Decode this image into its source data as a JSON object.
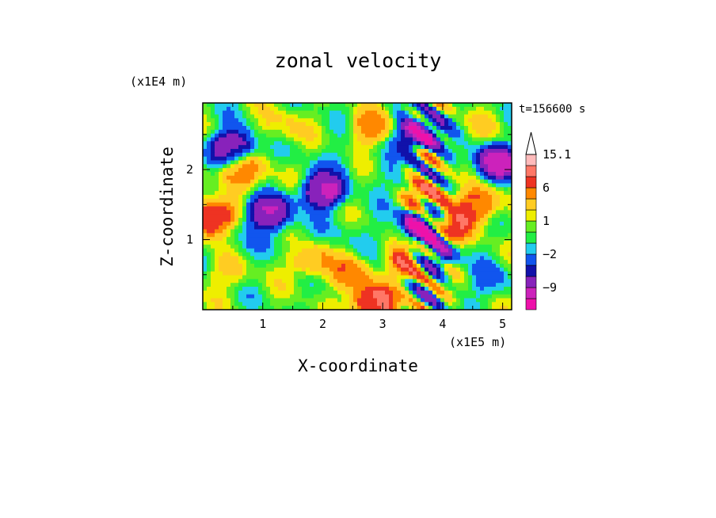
{
  "chart_data": {
    "type": "heatmap",
    "title": "zonal velocity",
    "xlabel": "X-coordinate",
    "ylabel": "Z-coordinate",
    "x_scale_label": "(x1E5 m)",
    "y_scale_label": "(x1E4 m)",
    "time_label": "t=156600 s",
    "xlim": [
      0,
      5.15
    ],
    "ylim": [
      0,
      2.95
    ],
    "x_ticks": [
      1,
      2,
      3,
      4,
      5
    ],
    "y_ticks": [
      1,
      2
    ],
    "colorbar": {
      "levels": [
        -15,
        -12,
        -9,
        -6,
        -4,
        -2,
        -1,
        0,
        1,
        2,
        4,
        6,
        9,
        12,
        15.1
      ],
      "labels": [
        "15.1",
        "6",
        "1",
        "−2",
        "−9"
      ],
      "label_values": [
        15.1,
        6,
        1,
        -2,
        -9
      ],
      "colors": [
        "#ee11aa",
        "#cc22bb",
        "#8822bb",
        "#1111aa",
        "#1155ee",
        "#22ccee",
        "#22ee44",
        "#66ee22",
        "#eeee00",
        "#ffcc22",
        "#ff8800",
        "#ee3322",
        "#ff7766",
        "#ffbbbb"
      ]
    },
    "blobs": [
      {
        "x": 1.1,
        "z": 1.4,
        "v": -9
      },
      {
        "x": 0.5,
        "z": 2.3,
        "v": -9
      },
      {
        "x": 2.0,
        "z": 1.7,
        "v": -9
      },
      {
        "x": 3.7,
        "z": 1.2,
        "v": -12
      },
      {
        "x": 3.8,
        "z": 0.8,
        "v": -9
      },
      {
        "x": 3.6,
        "z": 2.5,
        "v": -9
      },
      {
        "x": 4.9,
        "z": 2.1,
        "v": -9
      },
      {
        "x": 0.15,
        "z": 1.3,
        "v": 9
      },
      {
        "x": 4.1,
        "z": 1.2,
        "v": 9
      },
      {
        "x": 3.5,
        "z": 0.7,
        "v": 9
      },
      {
        "x": 2.85,
        "z": 0.1,
        "v": 9
      },
      {
        "x": 3.75,
        "z": 1.6,
        "v": 6
      },
      {
        "x": 4.6,
        "z": 1.5,
        "v": 6
      },
      {
        "x": 0.6,
        "z": 2.0,
        "v": 6
      },
      {
        "x": 1.8,
        "z": 0.7,
        "v": 4
      },
      {
        "x": 2.5,
        "z": 0.5,
        "v": 4
      },
      {
        "x": 1.3,
        "z": 2.6,
        "v": 2
      },
      {
        "x": 2.8,
        "z": 2.6,
        "v": 4
      },
      {
        "x": 0.4,
        "z": 0.5,
        "v": 2
      },
      {
        "x": 0.3,
        "z": 0.1,
        "v": 0
      },
      {
        "x": 0.6,
        "z": 1.0,
        "v": -1
      },
      {
        "x": 1.5,
        "z": 1.0,
        "v": -1
      },
      {
        "x": 4.8,
        "z": 0.4,
        "v": -2
      },
      {
        "x": 2.2,
        "z": 2.1,
        "v": -1
      },
      {
        "x": 1.2,
        "z": 1.8,
        "v": 1
      },
      {
        "x": 2.5,
        "z": 1.1,
        "v": -1
      },
      {
        "x": 4.6,
        "z": 2.6,
        "v": 1
      },
      {
        "x": 5.0,
        "z": 1.0,
        "v": 0
      },
      {
        "x": 3.2,
        "z": 1.9,
        "v": -1
      }
    ]
  }
}
